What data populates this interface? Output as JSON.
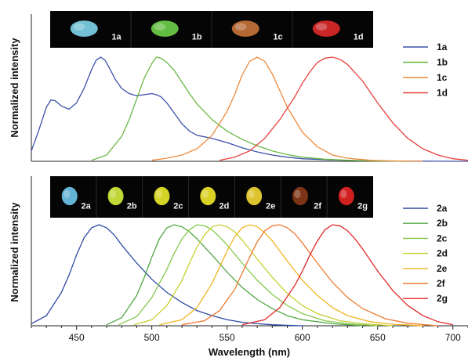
{
  "chart_data": [
    {
      "type": "line",
      "ylabel": "Normalized intensity",
      "xlim": [
        420,
        710
      ],
      "ylim": [
        0,
        1.15
      ],
      "grid": false,
      "legend_placement": "right",
      "inset_labels": [
        "1a",
        "1b",
        "1c",
        "1d"
      ],
      "inset_colors": [
        "#7fd4ea",
        "#6fd24a",
        "#c8743a",
        "#e02a2a"
      ],
      "series": [
        {
          "name": "1a",
          "color": "#3b50a8",
          "x": [
            420,
            425,
            430,
            433,
            436,
            440,
            445,
            450,
            455,
            460,
            463,
            466,
            469,
            472,
            476,
            480,
            485,
            490,
            495,
            500,
            503,
            506,
            510,
            515,
            520,
            525,
            530,
            540,
            550,
            560,
            570,
            580,
            590,
            600,
            615,
            630,
            650,
            670,
            690,
            710
          ],
          "y": [
            0.1,
            0.3,
            0.52,
            0.59,
            0.58,
            0.53,
            0.5,
            0.56,
            0.7,
            0.88,
            0.97,
            1.0,
            0.97,
            0.89,
            0.78,
            0.7,
            0.65,
            0.63,
            0.64,
            0.65,
            0.64,
            0.62,
            0.56,
            0.46,
            0.36,
            0.29,
            0.25,
            0.22,
            0.18,
            0.13,
            0.09,
            0.06,
            0.04,
            0.025,
            0.015,
            0.008,
            0.004,
            0.002,
            0.001,
            0
          ]
        },
        {
          "name": "1b",
          "color": "#6ab845",
          "x": [
            460,
            470,
            480,
            485,
            490,
            495,
            500,
            503,
            506,
            510,
            515,
            520,
            525,
            530,
            540,
            550,
            560,
            570,
            580,
            590,
            600,
            615,
            630,
            650,
            670
          ],
          "y": [
            0.01,
            0.06,
            0.24,
            0.4,
            0.6,
            0.8,
            0.94,
            1.0,
            0.99,
            0.95,
            0.87,
            0.76,
            0.65,
            0.55,
            0.4,
            0.29,
            0.21,
            0.15,
            0.1,
            0.065,
            0.04,
            0.02,
            0.01,
            0.003,
            0
          ]
        },
        {
          "name": "1c",
          "color": "#ee8a3c",
          "x": [
            500,
            510,
            520,
            530,
            540,
            550,
            555,
            560,
            565,
            570,
            575,
            580,
            585,
            590,
            600,
            610,
            620,
            630,
            645,
            660,
            680
          ],
          "y": [
            0.01,
            0.03,
            0.06,
            0.12,
            0.25,
            0.48,
            0.64,
            0.83,
            0.96,
            1.0,
            0.96,
            0.84,
            0.68,
            0.52,
            0.28,
            0.14,
            0.06,
            0.03,
            0.01,
            0.004,
            0
          ]
        },
        {
          "name": "1d",
          "color": "#e8403c",
          "x": [
            545,
            555,
            565,
            575,
            585,
            595,
            600,
            605,
            610,
            615,
            620,
            625,
            630,
            640,
            650,
            660,
            670,
            680,
            690,
            700,
            710
          ],
          "y": [
            0.01,
            0.04,
            0.1,
            0.22,
            0.4,
            0.62,
            0.75,
            0.86,
            0.95,
            0.99,
            1.0,
            0.98,
            0.93,
            0.77,
            0.56,
            0.37,
            0.22,
            0.12,
            0.06,
            0.025,
            0.01
          ]
        }
      ]
    },
    {
      "type": "line",
      "xlabel": "Wavelength (nm)",
      "ylabel": "Normalized intensity",
      "xlim": [
        420,
        710
      ],
      "ylim": [
        0,
        1.15
      ],
      "grid": false,
      "legend_placement": "right",
      "xticks": [
        450,
        500,
        550,
        600,
        650,
        700
      ],
      "inset_labels": [
        "2a",
        "2b",
        "2c",
        "2d",
        "2e",
        "2f",
        "2g"
      ],
      "inset_colors": [
        "#6fc6ec",
        "#d6ee3c",
        "#ecec2a",
        "#f2e82a",
        "#f5d832",
        "#8a3a1a",
        "#e82424"
      ],
      "series": [
        {
          "name": "2a",
          "color": "#2e4aa4",
          "x": [
            420,
            430,
            440,
            445,
            450,
            455,
            460,
            465,
            470,
            475,
            480,
            490,
            500,
            510,
            520,
            530,
            540,
            550,
            560,
            570,
            580,
            590,
            600
          ],
          "y": [
            0.02,
            0.1,
            0.33,
            0.5,
            0.7,
            0.87,
            0.97,
            1.0,
            0.97,
            0.9,
            0.8,
            0.62,
            0.46,
            0.33,
            0.23,
            0.15,
            0.1,
            0.06,
            0.035,
            0.02,
            0.01,
            0.005,
            0
          ]
        },
        {
          "name": "2b",
          "color": "#52a844",
          "x": [
            470,
            480,
            490,
            495,
            500,
            505,
            510,
            515,
            520,
            525,
            530,
            540,
            550,
            560,
            570,
            580,
            590,
            600,
            620,
            640
          ],
          "y": [
            0.01,
            0.08,
            0.3,
            0.48,
            0.68,
            0.86,
            0.97,
            1.0,
            0.98,
            0.93,
            0.86,
            0.7,
            0.53,
            0.38,
            0.26,
            0.17,
            0.1,
            0.06,
            0.02,
            0
          ]
        },
        {
          "name": "2c",
          "color": "#86c84c",
          "x": [
            478,
            490,
            500,
            510,
            515,
            520,
            525,
            530,
            535,
            540,
            545,
            550,
            560,
            570,
            580,
            590,
            600,
            615,
            630,
            650
          ],
          "y": [
            0.01,
            0.09,
            0.28,
            0.56,
            0.72,
            0.86,
            0.95,
            1.0,
            0.99,
            0.95,
            0.88,
            0.8,
            0.62,
            0.45,
            0.31,
            0.2,
            0.12,
            0.05,
            0.02,
            0
          ]
        },
        {
          "name": "2d",
          "color": "#c6d030",
          "x": [
            488,
            500,
            510,
            520,
            525,
            530,
            535,
            540,
            545,
            550,
            555,
            560,
            570,
            580,
            590,
            600,
            610,
            625,
            640,
            660
          ],
          "y": [
            0.01,
            0.06,
            0.2,
            0.45,
            0.62,
            0.78,
            0.9,
            0.98,
            1.0,
            0.98,
            0.93,
            0.85,
            0.66,
            0.48,
            0.32,
            0.2,
            0.12,
            0.05,
            0.02,
            0
          ]
        },
        {
          "name": "2e",
          "color": "#f0b422",
          "x": [
            505,
            520,
            530,
            540,
            545,
            550,
            555,
            560,
            565,
            570,
            575,
            580,
            590,
            600,
            610,
            620,
            630,
            645,
            660,
            680
          ],
          "y": [
            0.01,
            0.06,
            0.18,
            0.42,
            0.58,
            0.74,
            0.88,
            0.97,
            1.0,
            0.98,
            0.92,
            0.84,
            0.64,
            0.45,
            0.3,
            0.18,
            0.1,
            0.04,
            0.015,
            0
          ]
        },
        {
          "name": "2f",
          "color": "#ee7a30",
          "x": [
            520,
            535,
            545,
            555,
            560,
            565,
            570,
            575,
            580,
            585,
            590,
            595,
            600,
            610,
            620,
            630,
            640,
            655,
            670,
            690
          ],
          "y": [
            0.01,
            0.05,
            0.15,
            0.36,
            0.52,
            0.68,
            0.83,
            0.94,
            0.99,
            1.0,
            0.97,
            0.91,
            0.82,
            0.62,
            0.43,
            0.28,
            0.17,
            0.07,
            0.025,
            0
          ]
        },
        {
          "name": "2g",
          "color": "#e22a2a",
          "x": [
            560,
            575,
            585,
            595,
            600,
            605,
            610,
            615,
            620,
            625,
            630,
            635,
            640,
            650,
            660,
            670,
            680,
            690,
            700
          ],
          "y": [
            0.01,
            0.06,
            0.18,
            0.4,
            0.54,
            0.7,
            0.84,
            0.95,
            1.0,
            0.99,
            0.94,
            0.86,
            0.76,
            0.54,
            0.35,
            0.2,
            0.1,
            0.04,
            0.01
          ]
        }
      ]
    }
  ]
}
